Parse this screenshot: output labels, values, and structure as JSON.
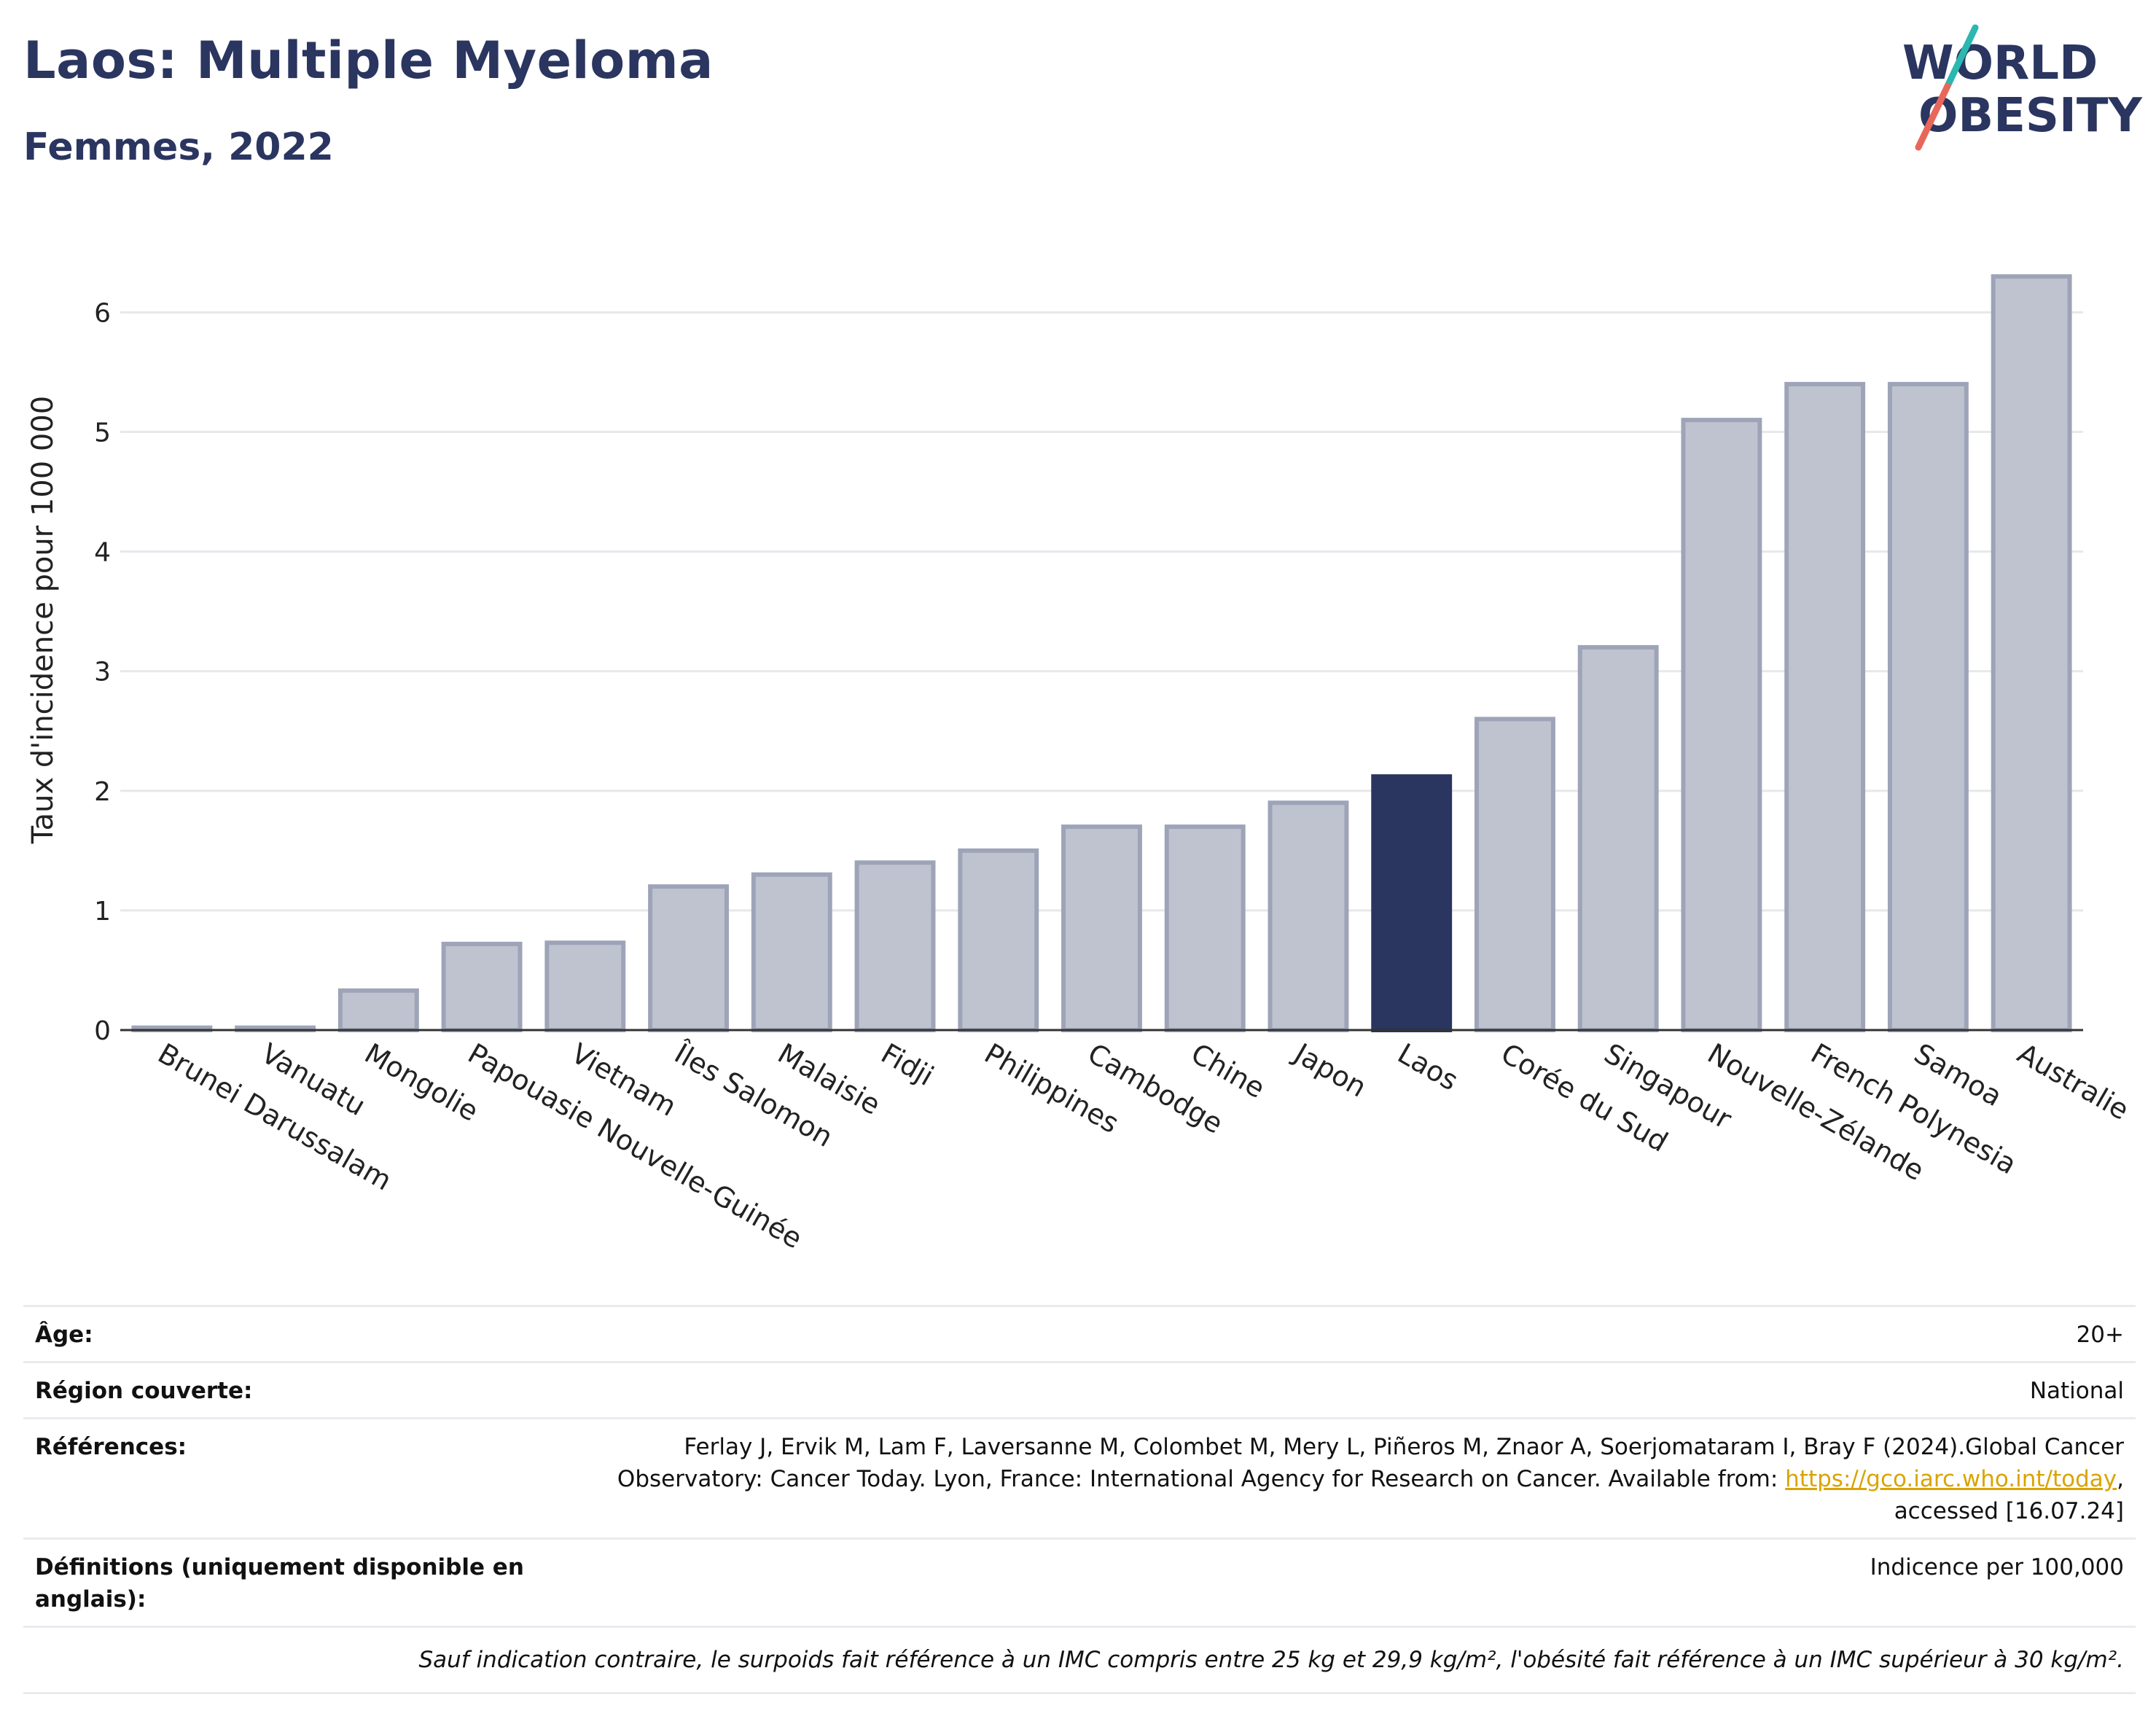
{
  "header": {
    "title": "Laos: Multiple Myeloma",
    "subtitle": "Femmes, 2022"
  },
  "logo": {
    "line1": "WORLD",
    "line2": "OBESITY",
    "accent_colors": [
      "#2cb7b0",
      "#e8675a"
    ]
  },
  "colors": {
    "highlight": "#2a3560",
    "bar": "#bfc3cf",
    "bar_edge": "#9ea4b8",
    "text": "#2a3560"
  },
  "chart_data": {
    "type": "bar",
    "ylabel": "Taux d'incidence pour 100 000",
    "xlabel": "",
    "ylim": [
      0,
      6.5
    ],
    "yticks": [
      0,
      1,
      2,
      3,
      4,
      5,
      6
    ],
    "grid": true,
    "highlight": "Laos",
    "categories": [
      "Brunei Darussalam",
      "Vanuatu",
      "Mongolie",
      "Papouasie Nouvelle-Guinée",
      "Vietnam",
      "Îles Salomon",
      "Malaisie",
      "Fidji",
      "Philippines",
      "Cambodge",
      "Chine",
      "Japon",
      "Laos",
      "Corée du Sud",
      "Singapour",
      "Nouvelle-Zélande",
      "French Polynesia",
      "Samoa",
      "Australie"
    ],
    "values": [
      0.02,
      0.02,
      0.33,
      0.72,
      0.73,
      1.2,
      1.3,
      1.4,
      1.5,
      1.7,
      1.7,
      1.9,
      2.12,
      2.6,
      3.2,
      5.1,
      5.4,
      5.4,
      6.3
    ]
  },
  "meta": {
    "age_label": "Âge:",
    "age_value": "20+",
    "region_label": "Région couverte:",
    "region_value": "National",
    "ref_label": "Références:",
    "ref_text_1": "Ferlay J, Ervik M, Lam F, Laversanne M, Colombet M, Mery L, Piñeros M, Znaor A, Soerjomataram I, Bray F (2024).Global Cancer",
    "ref_text_2": "Observatory: Cancer Today. Lyon, France: International Agency for Research on Cancer. Available from:",
    "ref_link": "https://gco.iarc.who.int/today",
    "ref_text_3": "accessed [16.07.24]",
    "def_label": "Définitions (uniquement disponible en anglais):",
    "def_value": "Indicence per 100,000",
    "note": "Sauf indication contraire, le surpoids fait référence à un IMC compris entre 25 kg et 29,9 kg/m², l'obésité fait référence à un IMC supérieur à 30 kg/m²."
  }
}
